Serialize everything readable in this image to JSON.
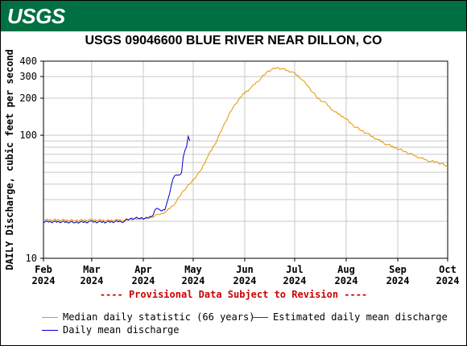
{
  "header": {
    "agency": "USGS"
  },
  "chart_data": {
    "type": "line",
    "title": "USGS 09046600 BLUE RIVER NEAR DILLON, CO",
    "ylabel": "DAILY Discharge, cubic feet per second",
    "xlabel": "",
    "yscale": "log",
    "ylim": [
      10,
      400
    ],
    "yticks": [
      10,
      100,
      200,
      300,
      400
    ],
    "xticks": [
      {
        "date": "2024-02-01",
        "label": [
          "Feb",
          "2024"
        ]
      },
      {
        "date": "2024-03-01",
        "label": [
          "Mar",
          "2024"
        ]
      },
      {
        "date": "2024-04-01",
        "label": [
          "Apr",
          "2024"
        ]
      },
      {
        "date": "2024-05-01",
        "label": [
          "May",
          "2024"
        ]
      },
      {
        "date": "2024-06-01",
        "label": [
          "Jun",
          "2024"
        ]
      },
      {
        "date": "2024-07-01",
        "label": [
          "Jul",
          "2024"
        ]
      },
      {
        "date": "2024-08-01",
        "label": [
          "Aug",
          "2024"
        ]
      },
      {
        "date": "2024-09-01",
        "label": [
          "Sep",
          "2024"
        ]
      },
      {
        "date": "2024-10-01",
        "label": [
          "Oct",
          "2024"
        ]
      }
    ],
    "grid": true,
    "annotation": "---- Provisional Data Subject to Revision ----",
    "series": [
      {
        "name": "Median daily statistic (66 years)",
        "color": "#e69500",
        "points": [
          [
            "2024-02-01",
            20.5
          ],
          [
            "2024-02-10",
            20.5
          ],
          [
            "2024-02-20",
            20.3
          ],
          [
            "2024-03-01",
            20.5
          ],
          [
            "2024-03-10",
            20.3
          ],
          [
            "2024-03-20",
            20.5
          ],
          [
            "2024-03-31",
            21.0
          ],
          [
            "2024-04-05",
            21.5
          ],
          [
            "2024-04-10",
            22.5
          ],
          [
            "2024-04-15",
            24
          ],
          [
            "2024-04-20",
            28
          ],
          [
            "2024-04-25",
            35
          ],
          [
            "2024-04-30",
            42
          ],
          [
            "2024-05-05",
            50
          ],
          [
            "2024-05-10",
            68
          ],
          [
            "2024-05-15",
            90
          ],
          [
            "2024-05-20",
            125
          ],
          [
            "2024-05-25",
            170
          ],
          [
            "2024-05-31",
            215
          ],
          [
            "2024-06-05",
            245
          ],
          [
            "2024-06-10",
            285
          ],
          [
            "2024-06-15",
            330
          ],
          [
            "2024-06-20",
            355
          ],
          [
            "2024-06-25",
            340
          ],
          [
            "2024-06-30",
            325
          ],
          [
            "2024-07-05",
            290
          ],
          [
            "2024-07-10",
            240
          ],
          [
            "2024-07-15",
            200
          ],
          [
            "2024-07-20",
            180
          ],
          [
            "2024-07-25",
            155
          ],
          [
            "2024-07-31",
            140
          ],
          [
            "2024-08-05",
            120
          ],
          [
            "2024-08-10",
            110
          ],
          [
            "2024-08-15",
            100
          ],
          [
            "2024-08-20",
            92
          ],
          [
            "2024-08-25",
            85
          ],
          [
            "2024-08-31",
            79
          ],
          [
            "2024-09-05",
            74
          ],
          [
            "2024-09-10",
            69
          ],
          [
            "2024-09-15",
            65
          ],
          [
            "2024-09-20",
            62
          ],
          [
            "2024-09-25",
            60
          ],
          [
            "2024-09-30",
            57
          ],
          [
            "2024-10-01",
            55
          ]
        ]
      },
      {
        "name": "Estimated daily mean discharge",
        "color": "#cc0000",
        "points": []
      },
      {
        "name": "Daily mean discharge",
        "color": "#0000cc",
        "points": [
          [
            "2024-02-01",
            19.8
          ],
          [
            "2024-02-10",
            19.8
          ],
          [
            "2024-02-20",
            19.6
          ],
          [
            "2024-03-01",
            19.8
          ],
          [
            "2024-03-10",
            19.7
          ],
          [
            "2024-03-20",
            20.0
          ],
          [
            "2024-03-25",
            21.0
          ],
          [
            "2024-03-30",
            21.3
          ],
          [
            "2024-04-03",
            21.0
          ],
          [
            "2024-04-07",
            22.5
          ],
          [
            "2024-04-09",
            26.0
          ],
          [
            "2024-04-11",
            24.5
          ],
          [
            "2024-04-14",
            25.0
          ],
          [
            "2024-04-16",
            30.0
          ],
          [
            "2024-04-18",
            40.0
          ],
          [
            "2024-04-20",
            48.0
          ],
          [
            "2024-04-22",
            47.0
          ],
          [
            "2024-04-24",
            50.0
          ],
          [
            "2024-04-25",
            65.0
          ],
          [
            "2024-04-26",
            75.0
          ],
          [
            "2024-04-27",
            82.0
          ],
          [
            "2024-04-28",
            97.0
          ],
          [
            "2024-04-29",
            90.0
          ]
        ]
      }
    ]
  },
  "legend": [
    {
      "label": "Median daily statistic (66 years)",
      "color": "#e69500"
    },
    {
      "label": "Estimated daily mean discharge",
      "color": "#cc0000"
    },
    {
      "label": "Daily mean discharge",
      "color": "#0000cc"
    }
  ]
}
